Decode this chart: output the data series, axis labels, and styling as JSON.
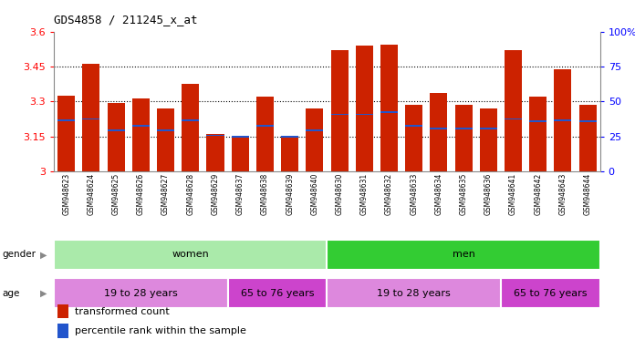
{
  "title": "GDS4858 / 211245_x_at",
  "samples": [
    "GSM948623",
    "GSM948624",
    "GSM948625",
    "GSM948626",
    "GSM948627",
    "GSM948628",
    "GSM948629",
    "GSM948637",
    "GSM948638",
    "GSM948639",
    "GSM948640",
    "GSM948630",
    "GSM948631",
    "GSM948632",
    "GSM948633",
    "GSM948634",
    "GSM948635",
    "GSM948636",
    "GSM948641",
    "GSM948642",
    "GSM948643",
    "GSM948644"
  ],
  "bar_values": [
    3.325,
    3.46,
    3.295,
    3.315,
    3.27,
    3.375,
    3.16,
    3.145,
    3.32,
    3.145,
    3.27,
    3.52,
    3.54,
    3.545,
    3.285,
    3.335,
    3.285,
    3.27,
    3.52,
    3.32,
    3.44,
    3.285
  ],
  "blue_values": [
    3.22,
    3.225,
    3.175,
    3.195,
    3.175,
    3.22,
    3.155,
    3.15,
    3.195,
    3.15,
    3.175,
    3.245,
    3.245,
    3.255,
    3.195,
    3.185,
    3.185,
    3.185,
    3.225,
    3.215,
    3.22,
    3.215
  ],
  "ymin": 3.0,
  "ymax": 3.6,
  "y2min": 0,
  "y2max": 100,
  "yticks": [
    3.0,
    3.15,
    3.3,
    3.45,
    3.6
  ],
  "ytick_labels": [
    "3",
    "3.15",
    "3.3",
    "3.45",
    "3.6"
  ],
  "y2ticks": [
    0,
    25,
    50,
    75,
    100
  ],
  "y2tick_labels": [
    "0",
    "25",
    "50",
    "75",
    "100%"
  ],
  "bar_color": "#cc2200",
  "blue_color": "#2255cc",
  "gender_groups": [
    {
      "label": "women",
      "start": 0,
      "end": 10,
      "color": "#aaeaaa"
    },
    {
      "label": "men",
      "start": 11,
      "end": 21,
      "color": "#33cc33"
    }
  ],
  "age_groups": [
    {
      "label": "19 to 28 years",
      "start": 0,
      "end": 6,
      "color": "#dd88dd"
    },
    {
      "label": "65 to 76 years",
      "start": 7,
      "end": 10,
      "color": "#cc44cc"
    },
    {
      "label": "19 to 28 years",
      "start": 11,
      "end": 17,
      "color": "#dd88dd"
    },
    {
      "label": "65 to 76 years",
      "start": 18,
      "end": 21,
      "color": "#cc44cc"
    }
  ],
  "legend_items": [
    {
      "label": "transformed count",
      "color": "#cc2200"
    },
    {
      "label": "percentile rank within the sample",
      "color": "#2255cc"
    }
  ],
  "bg_color": "#e8e8e8"
}
